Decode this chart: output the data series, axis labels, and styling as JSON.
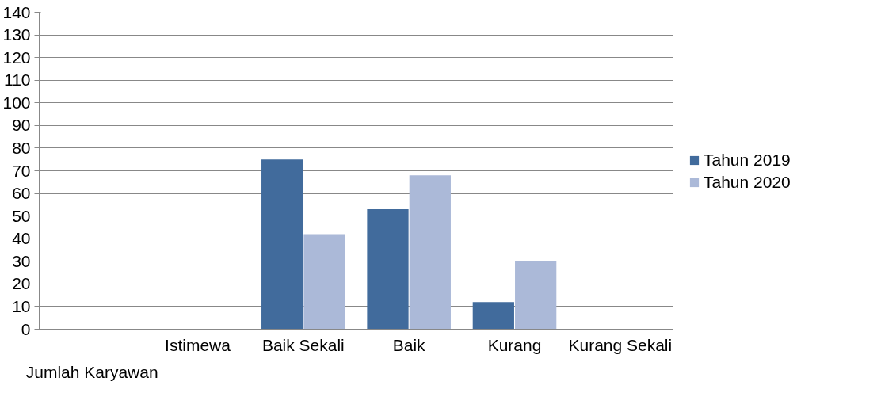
{
  "chart_data": {
    "type": "bar",
    "categories": [
      "Jumlah Karyawan",
      "Istimewa",
      "Baik Sekali",
      "Baik",
      "Kurang",
      "Kurang Sekali"
    ],
    "series": [
      {
        "name": "Tahun 2019",
        "color": "#416b9c",
        "values": [
          null,
          null,
          75,
          53,
          12,
          null
        ]
      },
      {
        "name": "Tahun 2020",
        "color": "#abb9d8",
        "values": [
          null,
          null,
          42,
          68,
          30,
          null
        ]
      }
    ],
    "ylim": [
      0,
      140
    ],
    "yticks": [
      0,
      10,
      20,
      30,
      40,
      50,
      60,
      70,
      80,
      90,
      100,
      110,
      120,
      130,
      140
    ],
    "grid": "y",
    "legend": "right"
  }
}
